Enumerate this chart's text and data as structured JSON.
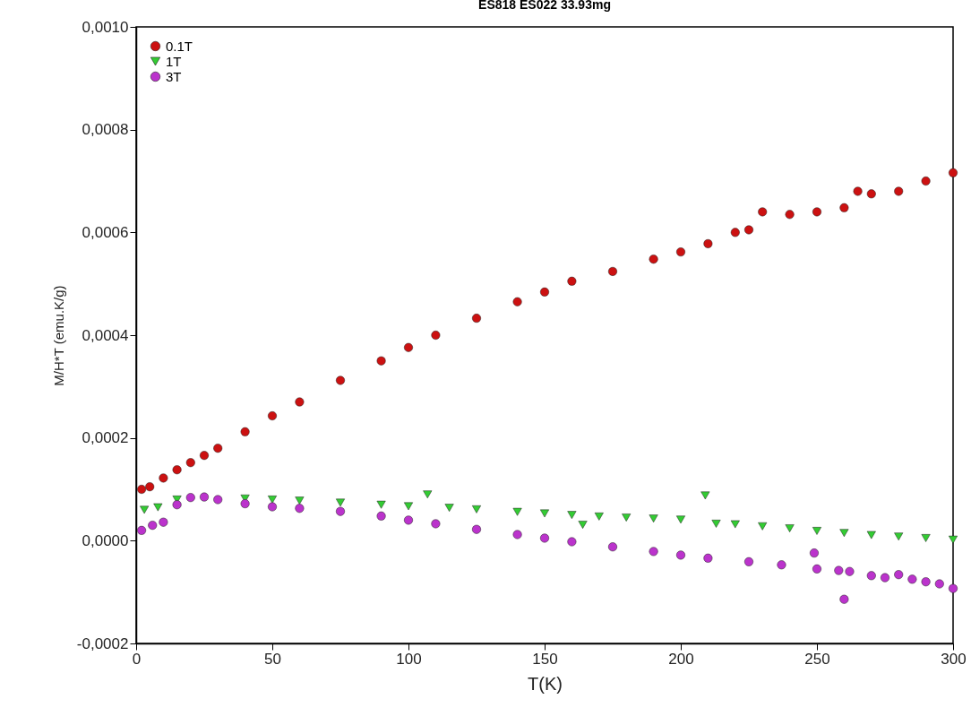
{
  "chart_data": {
    "type": "scatter",
    "title": "ES818        ES022   33.93mg",
    "xlabel": "T(K)",
    "ylabel": "M/H*T  (emu.K/g)",
    "xlim": [
      0,
      300
    ],
    "xticks": [
      0,
      50,
      100,
      150,
      200,
      250,
      300
    ],
    "ylim": [
      -0.0002,
      0.001
    ],
    "yticks": [
      {
        "value": -0.0002,
        "label": "-0,0002"
      },
      {
        "value": 0,
        "label": "0,0000"
      },
      {
        "value": 0.0002,
        "label": "0,0002"
      },
      {
        "value": 0.0004,
        "label": "0,0004"
      },
      {
        "value": 0.0006,
        "label": "0,0006"
      },
      {
        "value": 0.0008,
        "label": "0,0008"
      },
      {
        "value": 0.001,
        "label": "0,0010"
      }
    ],
    "grid": false,
    "legend": "top left",
    "series": [
      {
        "name": "0.1T",
        "color": "#cc1111",
        "marker": "circle",
        "x": [
          2,
          5,
          10,
          15,
          20,
          25,
          30,
          40,
          50,
          60,
          75,
          90,
          100,
          110,
          125,
          140,
          150,
          160,
          175,
          190,
          200,
          210,
          220,
          225,
          230,
          240,
          250,
          260,
          265,
          270,
          280,
          290,
          300
        ],
        "values": [
          0.0001,
          0.000105,
          0.000122,
          0.000138,
          0.000152,
          0.000166,
          0.00018,
          0.000212,
          0.000243,
          0.00027,
          0.000312,
          0.00035,
          0.000376,
          0.0004,
          0.000433,
          0.000465,
          0.000484,
          0.000505,
          0.000524,
          0.000548,
          0.000562,
          0.000578,
          0.0006,
          0.000605,
          0.00064,
          0.000635,
          0.00064,
          0.000648,
          0.00068,
          0.000675,
          0.00068,
          0.0007,
          0.000716
        ]
      },
      {
        "name": "1T",
        "color": "#33cc33",
        "marker": "triangle",
        "x": [
          3,
          8,
          15,
          40,
          50,
          60,
          75,
          90,
          100,
          107,
          115,
          125,
          140,
          150,
          160,
          164,
          170,
          180,
          190,
          200,
          209,
          213,
          220,
          230,
          240,
          250,
          260,
          270,
          280,
          290,
          300
        ],
        "values": [
          6e-05,
          6.5e-05,
          8e-05,
          8.2e-05,
          8e-05,
          7.8e-05,
          7.4e-05,
          7e-05,
          6.7e-05,
          9e-05,
          6.4e-05,
          6.1e-05,
          5.6e-05,
          5.3e-05,
          5e-05,
          3.1e-05,
          4.7e-05,
          4.5e-05,
          4.3e-05,
          4.1e-05,
          8.8e-05,
          3.3e-05,
          3.2e-05,
          2.8e-05,
          2.4e-05,
          1.9e-05,
          1.5e-05,
          1.1e-05,
          8e-06,
          5e-06,
          2e-06
        ]
      },
      {
        "name": "3T",
        "color": "#bb33cc",
        "marker": "circle",
        "x": [
          2,
          6,
          10,
          15,
          20,
          25,
          30,
          40,
          50,
          60,
          75,
          90,
          100,
          110,
          125,
          140,
          150,
          160,
          175,
          190,
          200,
          210,
          225,
          237,
          249,
          250,
          258,
          260,
          262,
          270,
          275,
          280,
          285,
          290,
          295,
          300
        ],
        "values": [
          2e-05,
          3e-05,
          3.6e-05,
          7e-05,
          8.4e-05,
          8.5e-05,
          8e-05,
          7.2e-05,
          6.6e-05,
          6.3e-05,
          5.7e-05,
          4.8e-05,
          4e-05,
          3.3e-05,
          2.2e-05,
          1.2e-05,
          5e-06,
          -2e-06,
          -1.2e-05,
          -2.1e-05,
          -2.8e-05,
          -3.4e-05,
          -4.1e-05,
          -4.7e-05,
          -2.4e-05,
          -5.5e-05,
          -5.8e-05,
          -0.000114,
          -6e-05,
          -6.8e-05,
          -7.2e-05,
          -6.6e-05,
          -7.5e-05,
          -8e-05,
          -8.4e-05,
          -9.3e-05
        ]
      }
    ]
  }
}
